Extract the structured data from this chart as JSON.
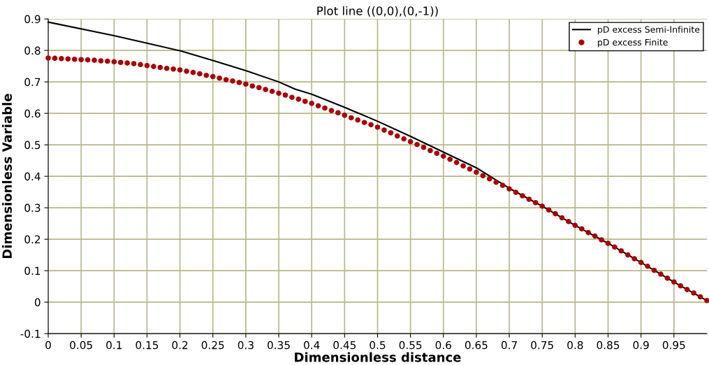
{
  "chart_data": {
    "type": "line",
    "title": "Plot line ((0,0),(0,-1))",
    "xlabel": "Dimensionless distance",
    "ylabel": "Dimensionless Variable",
    "xlim": [
      0,
      1
    ],
    "xticks": [
      0,
      0.05,
      0.1,
      0.15,
      0.2,
      0.25,
      0.3,
      0.35,
      0.4,
      0.45,
      0.5,
      0.55,
      0.6,
      0.65,
      0.7,
      0.75,
      0.8,
      0.85,
      0.9,
      0.95
    ],
    "ylim": [
      -0.1,
      0.9
    ],
    "yticks": [
      -0.1,
      0,
      0.1,
      0.2,
      0.3,
      0.4,
      0.5,
      0.6,
      0.7,
      0.8,
      0.9
    ],
    "grid": true,
    "legend": "top right",
    "series": [
      {
        "name": "pD excess Semi-Infinite",
        "color": "#000000",
        "marker": "none",
        "line_style": "solid",
        "x": [
          0,
          0.1,
          0.15,
          0.2,
          0.25,
          0.3,
          0.35,
          0.375,
          0.4,
          0.45,
          0.5,
          0.55,
          0.6,
          0.65,
          0.7,
          0.75,
          0.8,
          0.85,
          0.9,
          0.95,
          1.0
        ],
        "values": [
          0.89,
          0.847,
          0.823,
          0.799,
          0.768,
          0.736,
          0.7,
          0.677,
          0.661,
          0.619,
          0.575,
          0.527,
          0.477,
          0.427,
          0.362,
          0.305,
          0.244,
          0.187,
          0.126,
          0.064,
          0.005
        ]
      },
      {
        "name": "pD excess Finite",
        "type": "scatter",
        "color": "#aa0000",
        "marker": "circle",
        "x": [
          0,
          0.01,
          0.02,
          0.03,
          0.04,
          0.05,
          0.06,
          0.07,
          0.08,
          0.09,
          0.1,
          0.11,
          0.12,
          0.13,
          0.14,
          0.15,
          0.16,
          0.17,
          0.18,
          0.19,
          0.2,
          0.21,
          0.22,
          0.23,
          0.24,
          0.25,
          0.26,
          0.27,
          0.28,
          0.29,
          0.3,
          0.31,
          0.32,
          0.33,
          0.34,
          0.35,
          0.36,
          0.37,
          0.38,
          0.39,
          0.4,
          0.41,
          0.42,
          0.43,
          0.44,
          0.45,
          0.46,
          0.47,
          0.48,
          0.49,
          0.5,
          0.51,
          0.52,
          0.53,
          0.54,
          0.55,
          0.56,
          0.57,
          0.58,
          0.59,
          0.6,
          0.61,
          0.62,
          0.63,
          0.64,
          0.65,
          0.66,
          0.67,
          0.68,
          0.69,
          0.7,
          0.71,
          0.72,
          0.73,
          0.74,
          0.75,
          0.76,
          0.77,
          0.78,
          0.79,
          0.8,
          0.81,
          0.82,
          0.83,
          0.84,
          0.85,
          0.86,
          0.87,
          0.88,
          0.89,
          0.9,
          0.91,
          0.92,
          0.93,
          0.94,
          0.95,
          0.96,
          0.97,
          0.98,
          0.99,
          1.0
        ],
        "values": [
          0.776,
          0.775,
          0.774,
          0.773,
          0.772,
          0.771,
          0.77,
          0.769,
          0.767,
          0.766,
          0.764,
          0.762,
          0.76,
          0.758,
          0.755,
          0.752,
          0.749,
          0.746,
          0.743,
          0.741,
          0.738,
          0.734,
          0.73,
          0.726,
          0.721,
          0.717,
          0.712,
          0.707,
          0.703,
          0.698,
          0.693,
          0.687,
          0.682,
          0.676,
          0.67,
          0.664,
          0.658,
          0.651,
          0.645,
          0.638,
          0.632,
          0.624,
          0.617,
          0.609,
          0.602,
          0.594,
          0.586,
          0.579,
          0.571,
          0.564,
          0.556,
          0.547,
          0.538,
          0.528,
          0.519,
          0.51,
          0.501,
          0.492,
          0.482,
          0.473,
          0.464,
          0.454,
          0.444,
          0.433,
          0.423,
          0.413,
          0.402,
          0.392,
          0.381,
          0.371,
          0.36,
          0.349,
          0.338,
          0.327,
          0.316,
          0.305,
          0.293,
          0.281,
          0.268,
          0.256,
          0.244,
          0.233,
          0.221,
          0.21,
          0.198,
          0.187,
          0.175,
          0.163,
          0.15,
          0.138,
          0.126,
          0.114,
          0.101,
          0.089,
          0.076,
          0.064,
          0.052,
          0.04,
          0.029,
          0.017,
          0.005
        ]
      }
    ]
  }
}
